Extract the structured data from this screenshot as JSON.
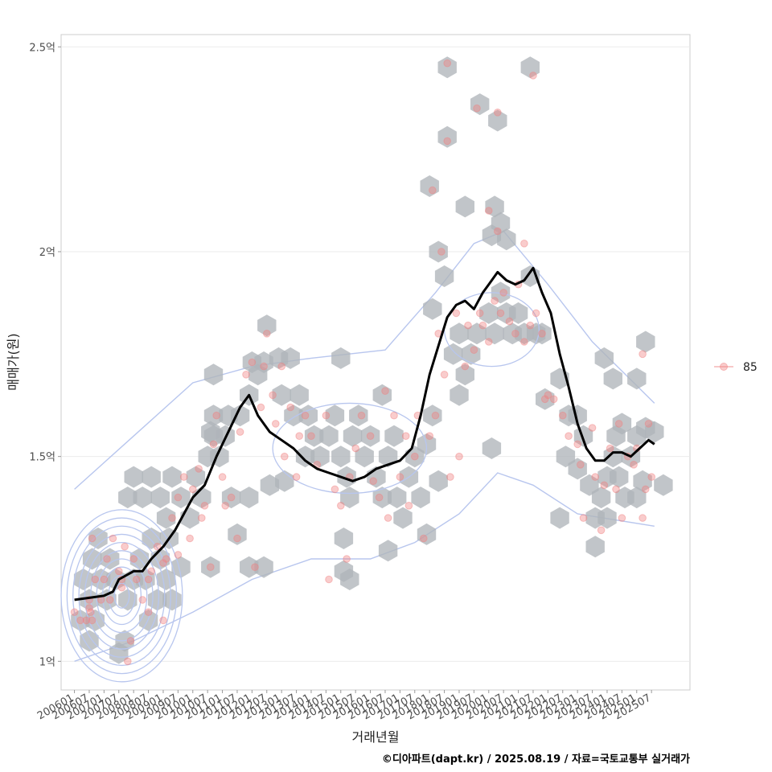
{
  "chart_data": {
    "type": "scatter",
    "xlabel": "거래년월",
    "ylabel": "매매가(원)",
    "caption": "©디아파트(dapt.kr) / 2025.08.19 / 자료=국토교통부 실거래가",
    "legend": {
      "position": "right",
      "entries": [
        {
          "label": "85",
          "color": "#f08080"
        }
      ]
    },
    "y_ticks": [
      {
        "value": 1.0,
        "label": "1억"
      },
      {
        "value": 1.5,
        "label": "1.5억"
      },
      {
        "value": 2.0,
        "label": "2억"
      },
      {
        "value": 2.5,
        "label": "2.5억"
      }
    ],
    "ylim": [
      0.93,
      2.53
    ],
    "xlim": [
      2005.55,
      2026.8
    ],
    "x_ticks": [
      "200601",
      "200607",
      "200701",
      "200707",
      "200801",
      "200807",
      "200901",
      "200907",
      "201001",
      "201007",
      "201101",
      "201107",
      "201201",
      "201207",
      "201301",
      "201307",
      "201401",
      "201407",
      "201501",
      "201507",
      "201601",
      "201607",
      "201701",
      "201707",
      "201801",
      "201807",
      "201901",
      "201907",
      "202001",
      "202007",
      "202101",
      "202107",
      "202201",
      "202207",
      "202301",
      "202307",
      "202401",
      "202407",
      "202501",
      "202507"
    ],
    "trend": [
      [
        2006.0,
        1.15
      ],
      [
        2006.5,
        1.155
      ],
      [
        2007.0,
        1.16
      ],
      [
        2007.3,
        1.17
      ],
      [
        2007.5,
        1.2
      ],
      [
        2008.0,
        1.22
      ],
      [
        2008.3,
        1.22
      ],
      [
        2008.6,
        1.25
      ],
      [
        2009.0,
        1.28
      ],
      [
        2009.4,
        1.32
      ],
      [
        2009.7,
        1.36
      ],
      [
        2010.0,
        1.4
      ],
      [
        2010.4,
        1.43
      ],
      [
        2010.8,
        1.5
      ],
      [
        2011.2,
        1.56
      ],
      [
        2011.6,
        1.62
      ],
      [
        2011.9,
        1.65
      ],
      [
        2012.2,
        1.6
      ],
      [
        2012.6,
        1.56
      ],
      [
        2013.0,
        1.54
      ],
      [
        2013.4,
        1.52
      ],
      [
        2013.8,
        1.49
      ],
      [
        2014.2,
        1.47
      ],
      [
        2014.6,
        1.46
      ],
      [
        2015.0,
        1.45
      ],
      [
        2015.4,
        1.44
      ],
      [
        2015.8,
        1.45
      ],
      [
        2016.2,
        1.47
      ],
      [
        2016.6,
        1.48
      ],
      [
        2017.0,
        1.49
      ],
      [
        2017.4,
        1.52
      ],
      [
        2017.7,
        1.6
      ],
      [
        2018.0,
        1.7
      ],
      [
        2018.3,
        1.77
      ],
      [
        2018.6,
        1.84
      ],
      [
        2018.9,
        1.87
      ],
      [
        2019.2,
        1.88
      ],
      [
        2019.5,
        1.86
      ],
      [
        2019.8,
        1.9
      ],
      [
        2020.0,
        1.92
      ],
      [
        2020.3,
        1.95
      ],
      [
        2020.6,
        1.93
      ],
      [
        2020.9,
        1.92
      ],
      [
        2021.2,
        1.93
      ],
      [
        2021.5,
        1.96
      ],
      [
        2021.8,
        1.9
      ],
      [
        2022.1,
        1.85
      ],
      [
        2022.4,
        1.75
      ],
      [
        2022.7,
        1.67
      ],
      [
        2023.0,
        1.58
      ],
      [
        2023.3,
        1.52
      ],
      [
        2023.6,
        1.49
      ],
      [
        2023.9,
        1.49
      ],
      [
        2024.2,
        1.51
      ],
      [
        2024.5,
        1.51
      ],
      [
        2024.8,
        1.5
      ],
      [
        2025.1,
        1.52
      ],
      [
        2025.4,
        1.54
      ],
      [
        2025.6,
        1.53
      ]
    ],
    "points": [
      [
        2006.0,
        1.12
      ],
      [
        2006.2,
        1.1
      ],
      [
        2006.4,
        1.1
      ],
      [
        2006.5,
        1.13
      ],
      [
        2006.5,
        1.15
      ],
      [
        2006.55,
        1.12
      ],
      [
        2006.6,
        1.1
      ],
      [
        2006.6,
        1.3
      ],
      [
        2006.7,
        1.2
      ],
      [
        2006.9,
        1.15
      ],
      [
        2007.0,
        1.2
      ],
      [
        2007.1,
        1.25
      ],
      [
        2007.2,
        1.15
      ],
      [
        2007.3,
        1.3
      ],
      [
        2007.5,
        1.22
      ],
      [
        2007.6,
        1.18
      ],
      [
        2007.7,
        1.28
      ],
      [
        2007.8,
        1.0
      ],
      [
        2007.9,
        1.05
      ],
      [
        2008.0,
        1.25
      ],
      [
        2008.1,
        1.2
      ],
      [
        2008.3,
        1.15
      ],
      [
        2008.5,
        1.2
      ],
      [
        2008.6,
        1.22
      ],
      [
        2008.8,
        1.28
      ],
      [
        2009.0,
        1.1
      ],
      [
        2009.1,
        1.25
      ],
      [
        2009.3,
        1.35
      ],
      [
        2009.5,
        1.4
      ],
      [
        2009.7,
        1.45
      ],
      [
        2009.9,
        1.3
      ],
      [
        2010.0,
        1.42
      ],
      [
        2010.2,
        1.47
      ],
      [
        2010.3,
        1.35
      ],
      [
        2010.4,
        1.38
      ],
      [
        2010.6,
        1.23
      ],
      [
        2010.7,
        1.53
      ],
      [
        2010.8,
        1.6
      ],
      [
        2011.0,
        1.45
      ],
      [
        2011.1,
        1.38
      ],
      [
        2011.3,
        1.4
      ],
      [
        2011.5,
        1.3
      ],
      [
        2011.6,
        1.56
      ],
      [
        2011.8,
        1.7
      ],
      [
        2012.0,
        1.73
      ],
      [
        2012.1,
        1.23
      ],
      [
        2012.3,
        1.62
      ],
      [
        2012.5,
        1.8
      ],
      [
        2012.7,
        1.65
      ],
      [
        2012.8,
        1.58
      ],
      [
        2013.0,
        1.72
      ],
      [
        2013.1,
        1.5
      ],
      [
        2013.3,
        1.62
      ],
      [
        2013.5,
        1.45
      ],
      [
        2013.6,
        1.55
      ],
      [
        2013.8,
        1.6
      ],
      [
        2014.0,
        1.55
      ],
      [
        2014.2,
        1.48
      ],
      [
        2014.5,
        1.6
      ],
      [
        2014.6,
        1.2
      ],
      [
        2014.8,
        1.42
      ],
      [
        2015.0,
        1.38
      ],
      [
        2015.2,
        1.25
      ],
      [
        2015.3,
        1.45
      ],
      [
        2015.5,
        1.52
      ],
      [
        2015.7,
        1.6
      ],
      [
        2016.0,
        1.55
      ],
      [
        2016.1,
        1.44
      ],
      [
        2016.3,
        1.4
      ],
      [
        2016.5,
        1.66
      ],
      [
        2016.6,
        1.35
      ],
      [
        2016.8,
        1.6
      ],
      [
        2017.0,
        1.45
      ],
      [
        2017.2,
        1.55
      ],
      [
        2017.3,
        1.38
      ],
      [
        2017.5,
        1.5
      ],
      [
        2017.6,
        1.6
      ],
      [
        2017.8,
        1.3
      ],
      [
        2018.0,
        1.55
      ],
      [
        2018.2,
        1.6
      ],
      [
        2018.3,
        1.8
      ],
      [
        2018.5,
        1.7
      ],
      [
        2018.7,
        1.45
      ],
      [
        2018.9,
        1.85
      ],
      [
        2019.0,
        1.5
      ],
      [
        2019.2,
        1.72
      ],
      [
        2019.3,
        1.82
      ],
      [
        2019.5,
        1.76
      ],
      [
        2019.7,
        1.85
      ],
      [
        2019.8,
        1.82
      ],
      [
        2020.0,
        1.78
      ],
      [
        2020.2,
        1.88
      ],
      [
        2020.4,
        1.85
      ],
      [
        2020.5,
        1.9
      ],
      [
        2020.7,
        1.83
      ],
      [
        2020.9,
        1.8
      ],
      [
        2021.0,
        1.92
      ],
      [
        2021.2,
        1.78
      ],
      [
        2021.4,
        1.82
      ],
      [
        2021.6,
        1.85
      ],
      [
        2021.8,
        1.8
      ],
      [
        2022.0,
        1.65
      ],
      [
        2022.2,
        1.64
      ],
      [
        2022.5,
        1.6
      ],
      [
        2022.7,
        1.55
      ],
      [
        2023.0,
        1.53
      ],
      [
        2023.1,
        1.48
      ],
      [
        2023.2,
        1.35
      ],
      [
        2023.5,
        1.57
      ],
      [
        2023.6,
        1.45
      ],
      [
        2023.8,
        1.32
      ],
      [
        2023.9,
        1.43
      ],
      [
        2024.1,
        1.52
      ],
      [
        2024.3,
        1.42
      ],
      [
        2024.4,
        1.58
      ],
      [
        2024.5,
        1.35
      ],
      [
        2024.7,
        1.5
      ],
      [
        2024.9,
        1.48
      ],
      [
        2025.0,
        1.52
      ],
      [
        2025.2,
        1.35
      ],
      [
        2025.3,
        1.42
      ],
      [
        2025.4,
        1.58
      ],
      [
        2025.5,
        1.45
      ],
      [
        2018.6,
        2.46
      ],
      [
        2018.1,
        2.15
      ],
      [
        2018.6,
        2.27
      ],
      [
        2019.6,
        2.35
      ],
      [
        2020.3,
        2.34
      ],
      [
        2018.4,
        2.0
      ],
      [
        2020.0,
        2.1
      ],
      [
        2020.3,
        2.05
      ],
      [
        2021.5,
        2.43
      ],
      [
        2021.2,
        2.02
      ],
      [
        2021.9,
        1.64
      ],
      [
        2025.2,
        1.75
      ],
      [
        2012.4,
        1.72
      ],
      [
        2009.5,
        1.26
      ],
      [
        2007.6,
        1.2
      ],
      [
        2008.5,
        1.12
      ],
      [
        2009.0,
        1.24
      ]
    ],
    "hexes": [
      [
        2006.2,
        1.1
      ],
      [
        2006.5,
        1.15
      ],
      [
        2006.7,
        1.1
      ],
      [
        2006.5,
        1.05
      ],
      [
        2006.3,
        1.2
      ],
      [
        2006.6,
        1.25
      ],
      [
        2006.9,
        1.2
      ],
      [
        2007.1,
        1.15
      ],
      [
        2006.8,
        1.3
      ],
      [
        2007.2,
        1.25
      ],
      [
        2007.4,
        1.2
      ],
      [
        2007.5,
        1.02
      ],
      [
        2007.7,
        1.05
      ],
      [
        2007.8,
        1.15
      ],
      [
        2008.0,
        1.2
      ],
      [
        2008.2,
        1.25
      ],
      [
        2008.4,
        1.2
      ],
      [
        2008.5,
        1.1
      ],
      [
        2008.8,
        1.15
      ],
      [
        2008.6,
        1.3
      ],
      [
        2008.9,
        1.25
      ],
      [
        2009.1,
        1.2
      ],
      [
        2009.3,
        1.15
      ],
      [
        2007.8,
        1.4
      ],
      [
        2008.0,
        1.45
      ],
      [
        2008.3,
        1.4
      ],
      [
        2008.6,
        1.45
      ],
      [
        2008.9,
        1.4
      ],
      [
        2009.1,
        1.35
      ],
      [
        2009.3,
        1.45
      ],
      [
        2009.6,
        1.4
      ],
      [
        2009.9,
        1.35
      ],
      [
        2010.1,
        1.45
      ],
      [
        2010.3,
        1.4
      ],
      [
        2010.6,
        1.23
      ],
      [
        2010.5,
        1.5
      ],
      [
        2010.7,
        1.55
      ],
      [
        2010.9,
        1.5
      ],
      [
        2011.1,
        1.55
      ],
      [
        2011.3,
        1.4
      ],
      [
        2011.5,
        1.31
      ],
      [
        2011.9,
        1.4
      ],
      [
        2011.9,
        1.23
      ],
      [
        2012.4,
        1.23
      ],
      [
        2010.7,
        1.7
      ],
      [
        2010.7,
        1.6
      ],
      [
        2011.2,
        1.6
      ],
      [
        2011.6,
        1.6
      ],
      [
        2011.9,
        1.65
      ],
      [
        2012.2,
        1.7
      ],
      [
        2012.0,
        1.73
      ],
      [
        2012.4,
        1.73
      ],
      [
        2012.5,
        1.82
      ],
      [
        2012.9,
        1.74
      ],
      [
        2013.3,
        1.74
      ],
      [
        2013.0,
        1.65
      ],
      [
        2013.4,
        1.6
      ],
      [
        2013.6,
        1.65
      ],
      [
        2013.9,
        1.6
      ],
      [
        2014.1,
        1.55
      ],
      [
        2013.8,
        1.5
      ],
      [
        2014.3,
        1.5
      ],
      [
        2014.6,
        1.55
      ],
      [
        2014.8,
        1.6
      ],
      [
        2015.0,
        1.5
      ],
      [
        2015.2,
        1.45
      ],
      [
        2015.4,
        1.55
      ],
      [
        2015.6,
        1.6
      ],
      [
        2015.8,
        1.5
      ],
      [
        2015.3,
        1.4
      ],
      [
        2015.1,
        1.3
      ],
      [
        2015.3,
        1.2
      ],
      [
        2015.1,
        1.22
      ],
      [
        2015.0,
        1.74
      ],
      [
        2016.0,
        1.55
      ],
      [
        2016.2,
        1.45
      ],
      [
        2016.4,
        1.4
      ],
      [
        2016.6,
        1.5
      ],
      [
        2016.8,
        1.55
      ],
      [
        2016.9,
        1.4
      ],
      [
        2017.1,
        1.35
      ],
      [
        2017.3,
        1.45
      ],
      [
        2017.5,
        1.5
      ],
      [
        2017.7,
        1.4
      ],
      [
        2017.9,
        1.31
      ],
      [
        2017.9,
        1.53
      ],
      [
        2018.1,
        1.6
      ],
      [
        2016.6,
        1.27
      ],
      [
        2016.4,
        1.65
      ],
      [
        2013.1,
        1.44
      ],
      [
        2012.6,
        1.43
      ],
      [
        2018.3,
        1.44
      ],
      [
        2018.1,
        1.86
      ],
      [
        2018.5,
        1.94
      ],
      [
        2018.3,
        2.0
      ],
      [
        2018.0,
        2.16
      ],
      [
        2018.6,
        2.28
      ],
      [
        2018.6,
        2.45
      ],
      [
        2019.2,
        2.11
      ],
      [
        2019.7,
        2.36
      ],
      [
        2020.3,
        2.32
      ],
      [
        2020.2,
        2.11
      ],
      [
        2020.4,
        2.07
      ],
      [
        2020.1,
        2.04
      ],
      [
        2020.6,
        2.03
      ],
      [
        2021.4,
        2.45
      ],
      [
        2021.4,
        1.94
      ],
      [
        2019.0,
        1.8
      ],
      [
        2019.2,
        1.7
      ],
      [
        2019.4,
        1.75
      ],
      [
        2019.6,
        1.8
      ],
      [
        2018.8,
        1.75
      ],
      [
        2019.0,
        1.65
      ],
      [
        2020.0,
        1.85
      ],
      [
        2020.2,
        1.8
      ],
      [
        2020.4,
        1.9
      ],
      [
        2020.6,
        1.85
      ],
      [
        2020.8,
        1.8
      ],
      [
        2021.0,
        1.85
      ],
      [
        2021.2,
        1.8
      ],
      [
        2021.6,
        1.8
      ],
      [
        2021.9,
        1.64
      ],
      [
        2021.8,
        1.8
      ],
      [
        2020.1,
        1.52
      ],
      [
        2022.4,
        1.69
      ],
      [
        2022.7,
        1.6
      ],
      [
        2022.6,
        1.5
      ],
      [
        2023.0,
        1.6
      ],
      [
        2023.2,
        1.55
      ],
      [
        2022.4,
        1.35
      ],
      [
        2023.0,
        1.47
      ],
      [
        2023.4,
        1.43
      ],
      [
        2023.6,
        1.35
      ],
      [
        2023.6,
        1.28
      ],
      [
        2023.8,
        1.4
      ],
      [
        2024.0,
        1.45
      ],
      [
        2024.2,
        1.5
      ],
      [
        2024.4,
        1.45
      ],
      [
        2024.6,
        1.4
      ],
      [
        2024.3,
        1.55
      ],
      [
        2024.5,
        1.58
      ],
      [
        2024.8,
        1.5
      ],
      [
        2025.0,
        1.55
      ],
      [
        2025.3,
        1.57
      ],
      [
        2025.6,
        1.56
      ],
      [
        2025.2,
        1.44
      ],
      [
        2025.0,
        1.4
      ],
      [
        2025.9,
        1.43
      ],
      [
        2024.0,
        1.35
      ],
      [
        2023.9,
        1.74
      ],
      [
        2024.2,
        1.69
      ],
      [
        2025.0,
        1.69
      ],
      [
        2025.3,
        1.78
      ],
      [
        2009.6,
        1.23
      ],
      [
        2009.2,
        1.3
      ],
      [
        2010.6,
        1.56
      ]
    ],
    "contours": [
      {
        "cx": 2007.6,
        "cy": 1.16,
        "levels": [
          [
            0.25,
            0.03
          ],
          [
            0.45,
            0.05
          ],
          [
            0.65,
            0.07
          ],
          [
            0.85,
            0.09
          ],
          [
            1.05,
            0.11
          ],
          [
            1.25,
            0.13
          ],
          [
            1.45,
            0.15
          ],
          [
            1.65,
            0.17
          ],
          [
            1.85,
            0.19
          ],
          [
            2.05,
            0.21
          ]
        ]
      },
      {
        "cx": 2015.3,
        "cy": 1.52,
        "levels": [
          [
            2.6,
            0.11
          ]
        ]
      },
      {
        "cx": 2020.1,
        "cy": 1.81,
        "levels": [
          [
            1.6,
            0.09
          ]
        ]
      }
    ],
    "band_top": [
      [
        2006.0,
        1.42
      ],
      [
        2008.0,
        1.55
      ],
      [
        2010.0,
        1.68
      ],
      [
        2012.0,
        1.72
      ],
      [
        2014.0,
        1.74
      ],
      [
        2016.5,
        1.76
      ],
      [
        2018.2,
        1.9
      ],
      [
        2019.5,
        2.02
      ],
      [
        2020.5,
        2.05
      ],
      [
        2022.0,
        1.92
      ],
      [
        2023.5,
        1.78
      ],
      [
        2025.6,
        1.63
      ]
    ],
    "band_bottom": [
      [
        2006.0,
        1.0
      ],
      [
        2008.0,
        1.05
      ],
      [
        2010.0,
        1.12
      ],
      [
        2012.0,
        1.2
      ],
      [
        2014.0,
        1.25
      ],
      [
        2016.0,
        1.25
      ],
      [
        2017.5,
        1.29
      ],
      [
        2019.0,
        1.36
      ],
      [
        2020.3,
        1.46
      ],
      [
        2021.5,
        1.43
      ],
      [
        2023.0,
        1.36
      ],
      [
        2025.6,
        1.33
      ]
    ]
  }
}
